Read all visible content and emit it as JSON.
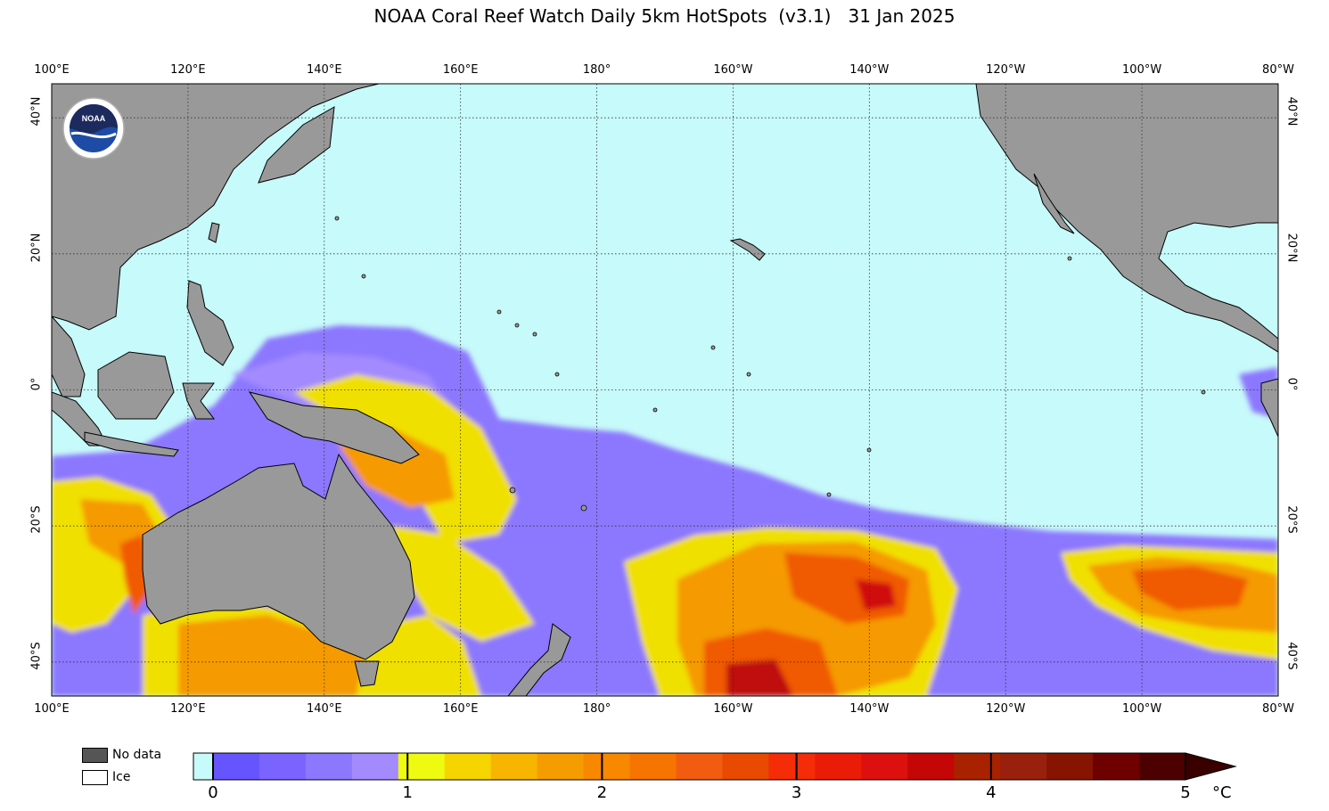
{
  "title": "NOAA Coral Reef Watch Daily 5km HotSpots  (v3.1)   31 Jan 2025",
  "lon_labels": [
    {
      "text": "100°E",
      "lon": 100
    },
    {
      "text": "120°E",
      "lon": 120
    },
    {
      "text": "140°E",
      "lon": 140
    },
    {
      "text": "160°E",
      "lon": 160
    },
    {
      "text": "180°",
      "lon": 180
    },
    {
      "text": "160°W",
      "lon": 200
    },
    {
      "text": "140°W",
      "lon": 220
    },
    {
      "text": "120°W",
      "lon": 240
    },
    {
      "text": "100°W",
      "lon": 260
    },
    {
      "text": "80°W",
      "lon": 280
    }
  ],
  "lat_labels": [
    {
      "text": "40°N",
      "lat": 40
    },
    {
      "text": "20°N",
      "lat": 20
    },
    {
      "text": "0°",
      "lat": 0
    },
    {
      "text": "20°S",
      "lat": -20
    },
    {
      "text": "40°S",
      "lat": -40
    }
  ],
  "extent": {
    "lon": [
      100,
      280
    ],
    "lat": [
      -45,
      45
    ]
  },
  "logo": {
    "icon": "noaa-logo-icon",
    "text": "NOAA"
  },
  "legend": {
    "no_data": "No data",
    "ice": "Ice",
    "no_data_color": "#555555",
    "ice_color": "#ffffff"
  },
  "colorbar": {
    "ticks": [
      "0",
      "1",
      "2",
      "3",
      "4",
      "5"
    ],
    "unit": "°C",
    "colors": [
      "#c7fafa",
      "#6655ff",
      "#7a63ff",
      "#8c77ff",
      "#a38aff",
      "#eefa10",
      "#f6d400",
      "#f7b500",
      "#f49c00",
      "#f78800",
      "#f67400",
      "#f25c10",
      "#e74a00",
      "#f52c08",
      "#ea1c08",
      "#dd1010",
      "#c40606",
      "#a82200",
      "#98200c",
      "#861400",
      "#6e0000",
      "#4d0000"
    ]
  },
  "colors": {
    "ocean": "#c7fafa",
    "land": "#999999",
    "coast": "#000000",
    "purple_light": "#a38aff",
    "purple": "#7a63ff",
    "yellow": "#f5e800",
    "orange": "#f59a00",
    "red_orange": "#f05a00",
    "red": "#d01010",
    "dark_red": "#9a1010"
  }
}
